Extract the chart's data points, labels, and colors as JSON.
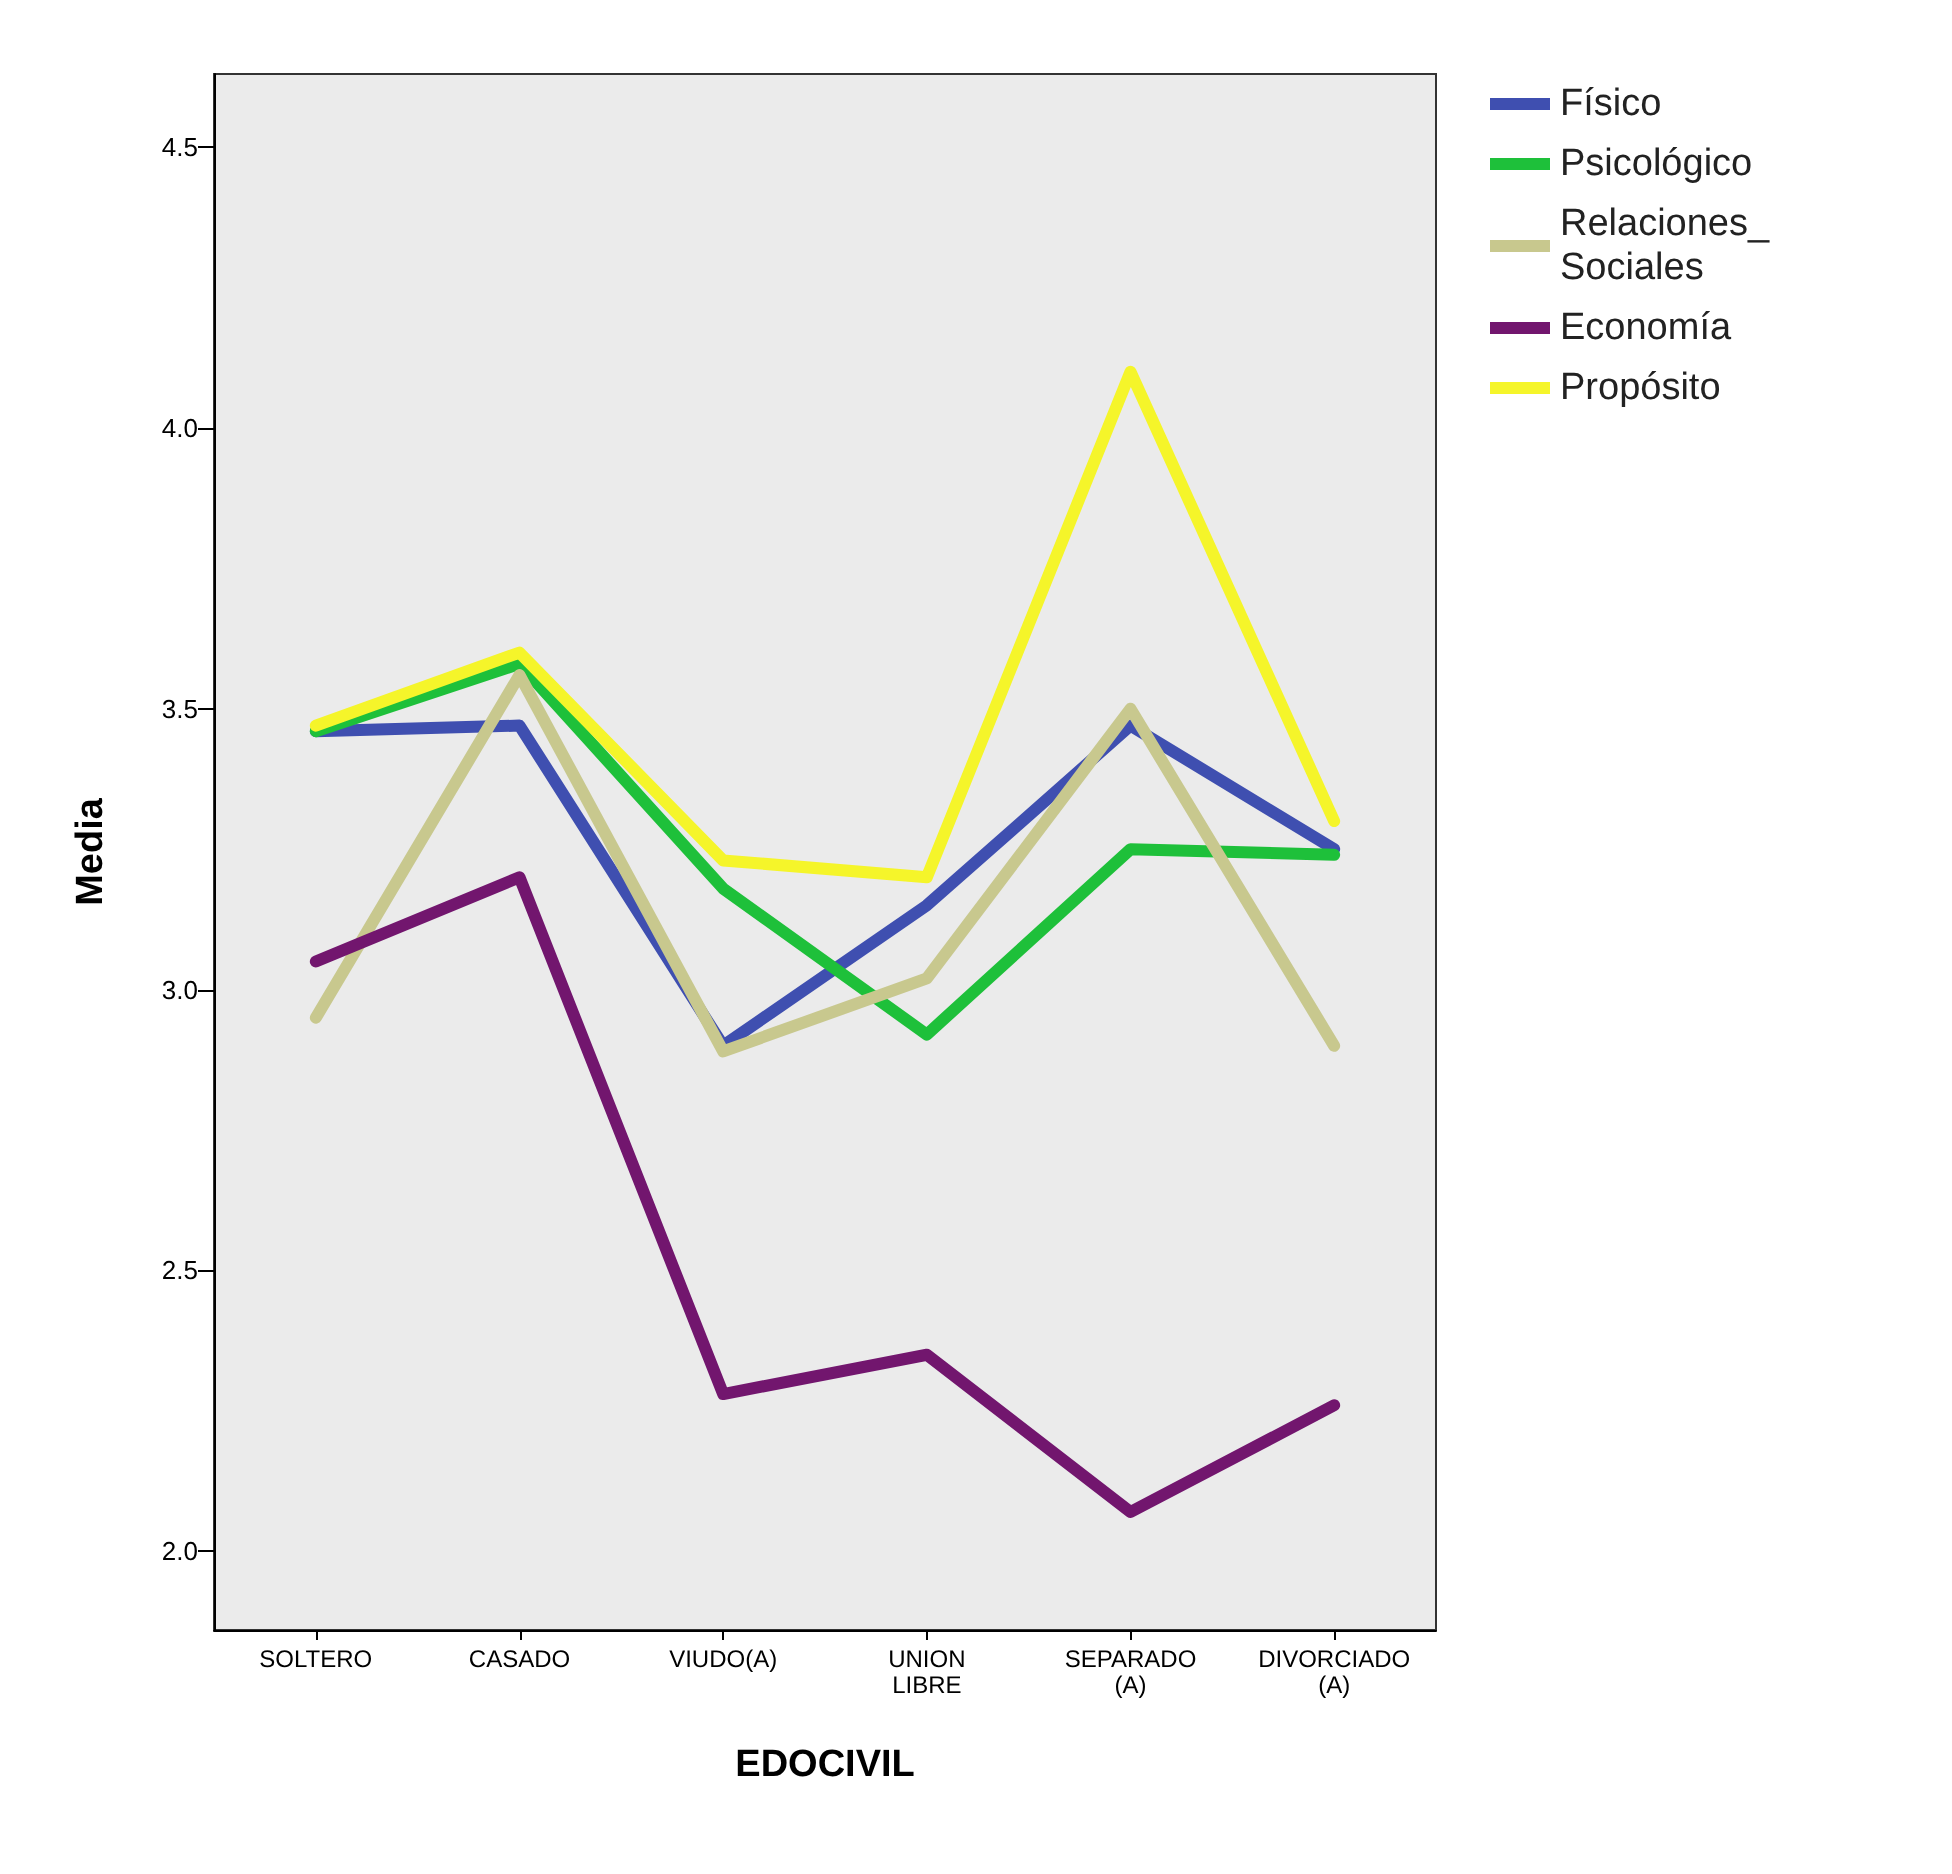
{
  "chart_data": {
    "type": "line",
    "xlabel": "EDOCIVIL",
    "ylabel": "Media",
    "categories": [
      "SOLTERO",
      "CASADO",
      "VIUDO(A)",
      "UNION\nLIBRE",
      "SEPARADO\n(A)",
      "DIVORCIADO\n(A)"
    ],
    "series": [
      {
        "name": "Físico",
        "color": "#3f4fb0",
        "values": [
          3.46,
          3.47,
          2.9,
          3.15,
          3.47,
          3.25
        ]
      },
      {
        "name": "Psicológico",
        "color": "#1ec03a",
        "values": [
          3.46,
          3.58,
          3.18,
          2.92,
          3.25,
          3.24
        ]
      },
      {
        "name": "Relaciones_\nSociales",
        "color": "#c8c88e",
        "values": [
          2.95,
          3.56,
          2.89,
          3.02,
          3.5,
          2.9
        ]
      },
      {
        "name": "Economía",
        "color": "#72166e",
        "values": [
          3.05,
          3.2,
          2.28,
          2.35,
          2.07,
          2.26
        ]
      },
      {
        "name": "Propósito",
        "color": "#f5f52a",
        "values": [
          3.47,
          3.6,
          3.23,
          3.2,
          4.1,
          3.3
        ]
      }
    ],
    "ylim": [
      1.86,
      4.63
    ],
    "yticks": [
      {
        "value": 2,
        "label": "2.0"
      },
      {
        "value": 2.5,
        "label": "2.5"
      },
      {
        "value": 3,
        "label": "3.0"
      },
      {
        "value": 3.5,
        "label": "3.5"
      },
      {
        "value": 4,
        "label": "4.0"
      },
      {
        "value": 4.5,
        "label": "4.5"
      }
    ],
    "grid": false,
    "legend": "top right",
    "marker": "none",
    "line_style": "solid"
  }
}
